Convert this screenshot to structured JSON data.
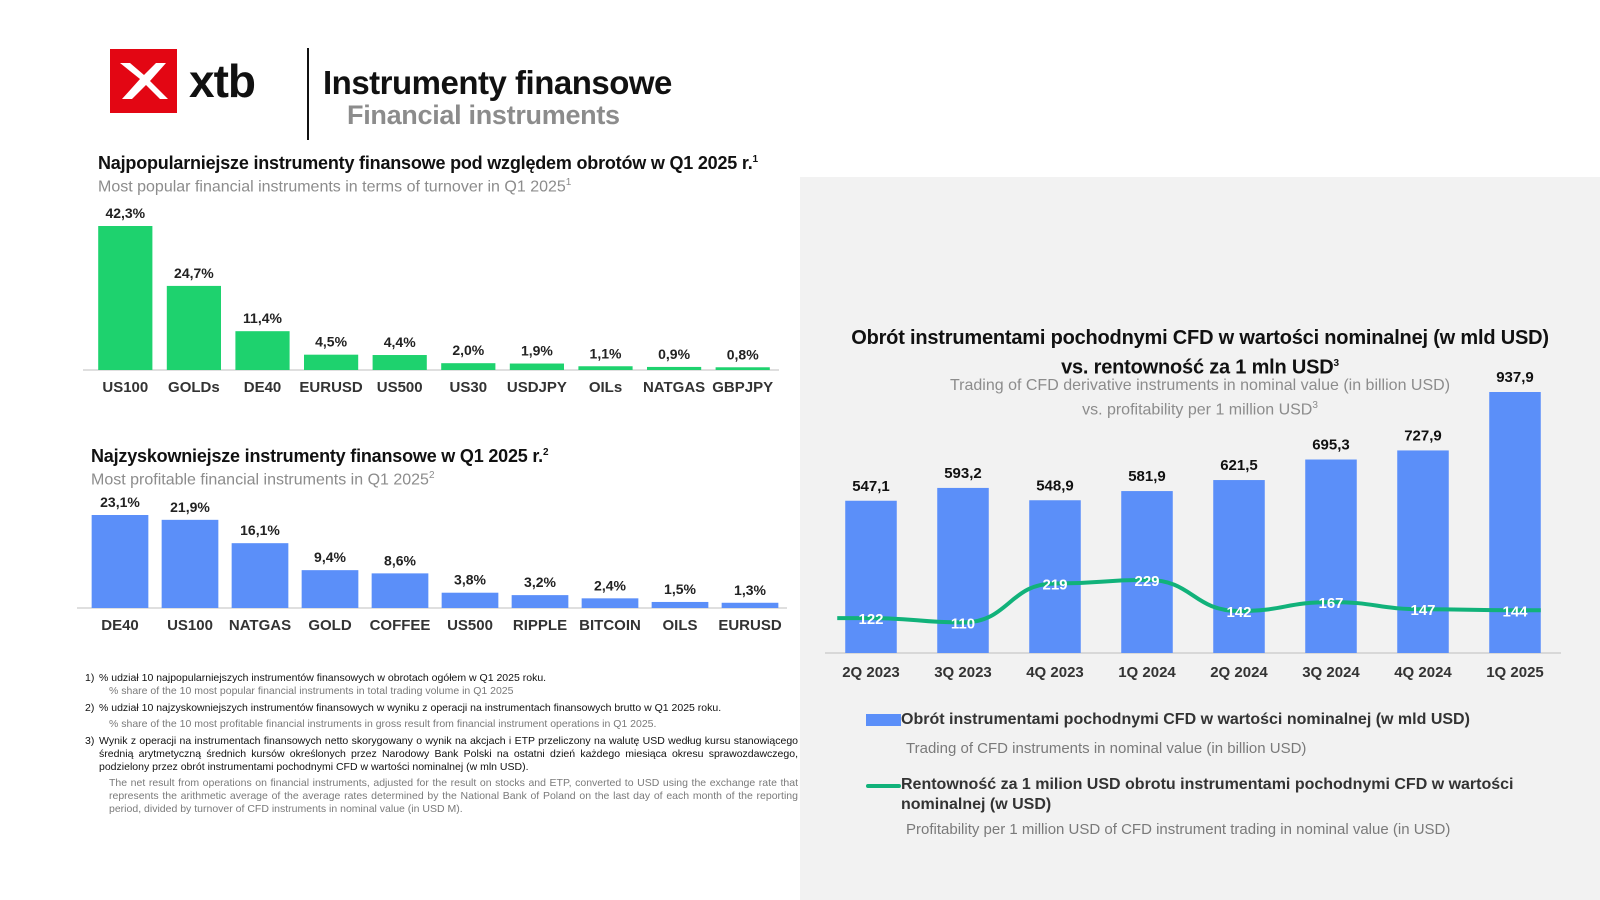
{
  "header": {
    "logo_text": "xtb",
    "title_pl": "Instrumenty finansowe",
    "title_en": "Financial instruments"
  },
  "colors": {
    "green_bar": "#1ed26e",
    "blue_bar": "#5b8ff9",
    "line_green": "#11b27a",
    "brand_red": "#e30613",
    "panel_bg": "#f2f2f2"
  },
  "section1": {
    "title_pl": "Najpopularniejsze instrumenty finansowe pod względem obrotów w Q1  2025 r.",
    "title_pl_sup": "1",
    "title_en": "Most popular financial instruments in terms of turnover in Q1 2025",
    "title_en_sup": "1"
  },
  "section2": {
    "title_pl": "Najzyskowniejsze instrumenty finansowe w Q1  2025 r.",
    "title_pl_sup": "2",
    "title_en": "Most profitable financial instruments in Q1 2025",
    "title_en_sup": "2"
  },
  "section3": {
    "title_pl_line1": "Obrót instrumentami pochodnymi CFD w wartości nominalnej (w mld USD)",
    "title_pl_line2": "vs. rentowność za 1 mln USD",
    "title_pl_sup": "3",
    "title_en_line1": "Trading of CFD derivative instruments in nominal value (in billion USD)",
    "title_en_line2": "vs. profitability per 1 million USD",
    "title_en_sup": "3"
  },
  "chart_data": [
    {
      "type": "bar",
      "id": "popular",
      "categories": [
        "US100",
        "GOLDs",
        "DE40",
        "EURUSD",
        "US500",
        "US30",
        "USDJPY",
        "OILs",
        "NATGAS",
        "GBPJPY"
      ],
      "values": [
        42.3,
        24.7,
        11.4,
        4.5,
        4.4,
        2.0,
        1.9,
        1.1,
        0.9,
        0.8
      ],
      "labels": [
        "42,3%",
        "24,7%",
        "11,4%",
        "4,5%",
        "4,4%",
        "2,0%",
        "1,9%",
        "1,1%",
        "0,9%",
        "0,8%"
      ],
      "unit": "%",
      "color": "#1ed26e"
    },
    {
      "type": "bar",
      "id": "profitable",
      "categories": [
        "DE40",
        "US100",
        "NATGAS",
        "GOLD",
        "COFFEE",
        "US500",
        "RIPPLE",
        "BITCOIN",
        "OILS",
        "EURUSD"
      ],
      "values": [
        23.1,
        21.9,
        16.1,
        9.4,
        8.6,
        3.8,
        3.2,
        2.4,
        1.5,
        1.3
      ],
      "labels": [
        "23,1%",
        "21,9%",
        "16,1%",
        "9,4%",
        "8,6%",
        "3,8%",
        "3,2%",
        "2,4%",
        "1,5%",
        "1,3%"
      ],
      "unit": "%",
      "color": "#5b8ff9"
    },
    {
      "type": "bar+line",
      "id": "cfd",
      "categories": [
        "2Q 2023",
        "3Q 2023",
        "4Q 2023",
        "1Q 2024",
        "2Q 2024",
        "3Q 2024",
        "4Q 2024",
        "1Q 2025"
      ],
      "series": [
        {
          "name": "Obrót instrumentami pochodnymi CFD w wartości nominalnej (w mld USD)",
          "type": "bar",
          "values": [
            547.1,
            593.2,
            548.9,
            581.9,
            621.5,
            695.3,
            727.9,
            937.9
          ],
          "labels": [
            "547,1",
            "593,2",
            "548,9",
            "581,9",
            "621,5",
            "695,3",
            "727,9",
            "937,9"
          ],
          "color": "#5b8ff9"
        },
        {
          "name": "Rentowność za 1 milion USD obrotu instrumentami pochodnymi CFD w wartości nominalnej (w USD)",
          "type": "line",
          "values": [
            122,
            110,
            219,
            229,
            142,
            167,
            147,
            144
          ],
          "labels": [
            "122",
            "110",
            "219",
            "229",
            "142",
            "167",
            "147",
            "144"
          ],
          "color": "#11b27a"
        }
      ]
    }
  ],
  "legend": {
    "bar_pl": "Obrót instrumentami pochodnymi CFD w wartości nominalnej (w mld USD)",
    "bar_en": "Trading of CFD instruments in nominal value (in billion USD)",
    "line_pl": "Rentowność za 1 milion USD obrotu instrumentami pochodnymi CFD w wartości nominalnej (w USD)",
    "line_en": "Profitability per 1 million USD of CFD instrument trading in nominal value (in USD)"
  },
  "footnotes": [
    {
      "num": "1)",
      "pl": "% udział 10 najpopularniejszych instrumentów finansowych w obrotach ogółem w Q1  2025 roku.",
      "en": "% share of the 10 most popular financial instruments in total trading volume in Q1 2025"
    },
    {
      "num": "2)",
      "pl": "% udział 10 najzyskowniejszych instrumentów finansowych w wyniku z operacji na instrumentach finansowych brutto w Q1  2025 roku.",
      "en": "% share of the 10 most profitable financial instruments in gross result from financial instrument operations in Q1 2025."
    },
    {
      "num": "3)",
      "pl": "Wynik z operacji na instrumentach finansowych netto skorygowany o wynik na akcjach i ETP przeliczony na walutę USD według kursu stanowiącego średnią arytmetyczną średnich kursów określonych przez Narodowy Bank Polski na ostatni dzień każdego miesiąca okresu sprawozdawczego, podzielony przez obrót instrumentami pochodnymi CFD w wartości nominalnej (w mln USD).",
      "en": "The net result from operations on financial instruments, adjusted for the result on stocks and ETP, converted to USD using the exchange rate that represents the arithmetic average of the average rates determined by the National Bank of Poland on the last day of each month of the reporting period, divided by turnover of CFD instruments in nominal value (in USD M)."
    }
  ]
}
